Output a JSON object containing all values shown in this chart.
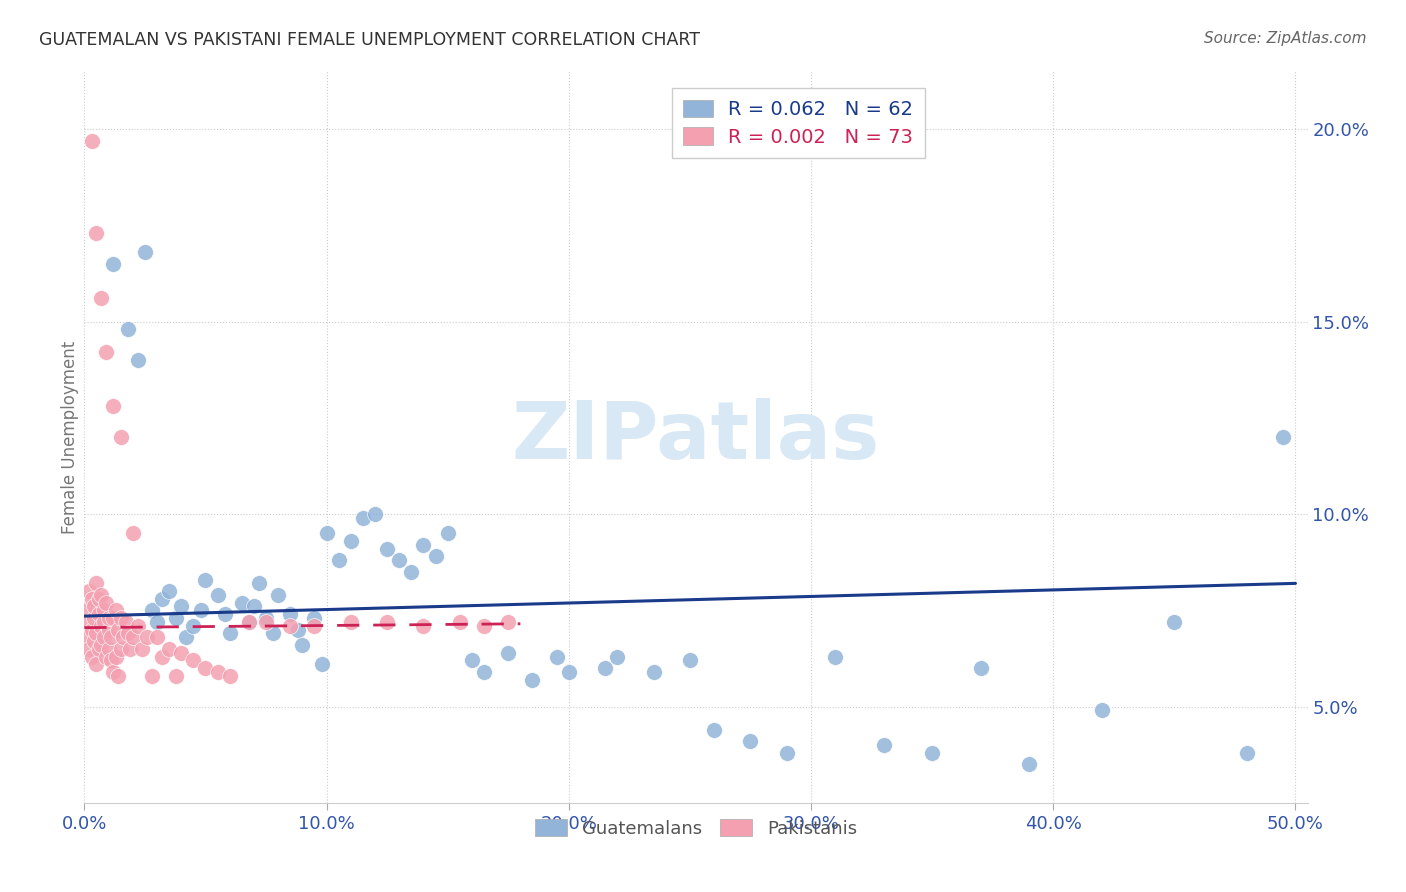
{
  "title": "GUATEMALAN VS PAKISTANI FEMALE UNEMPLOYMENT CORRELATION CHART",
  "source": "Source: ZipAtlas.com",
  "ylabel": "Female Unemployment",
  "legend_blue_R": "R = 0.062",
  "legend_blue_N": "N = 62",
  "legend_pink_R": "R = 0.002",
  "legend_pink_N": "N = 73",
  "blue_scatter_color": "#92B4D9",
  "pink_scatter_color": "#F4A0B0",
  "blue_line_color": "#1A3A8A",
  "pink_line_color": "#CC2255",
  "tick_label_color": "#3355AA",
  "watermark_color": "#D8E8F5",
  "ylabel_color": "#777777",
  "title_color": "#333333",
  "source_color": "#666666",
  "guat_x": [
    0.012,
    0.018,
    0.022,
    0.025,
    0.028,
    0.03,
    0.032,
    0.035,
    0.038,
    0.04,
    0.042,
    0.045,
    0.048,
    0.05,
    0.055,
    0.058,
    0.06,
    0.065,
    0.068,
    0.07,
    0.072,
    0.075,
    0.078,
    0.08,
    0.085,
    0.088,
    0.09,
    0.095,
    0.098,
    0.1,
    0.105,
    0.11,
    0.115,
    0.12,
    0.125,
    0.13,
    0.135,
    0.14,
    0.145,
    0.15,
    0.16,
    0.165,
    0.175,
    0.185,
    0.195,
    0.2,
    0.215,
    0.22,
    0.235,
    0.25,
    0.26,
    0.275,
    0.29,
    0.31,
    0.33,
    0.35,
    0.37,
    0.39,
    0.42,
    0.45,
    0.48,
    0.495
  ],
  "guat_y": [
    0.165,
    0.148,
    0.14,
    0.168,
    0.075,
    0.072,
    0.078,
    0.08,
    0.073,
    0.076,
    0.068,
    0.071,
    0.075,
    0.083,
    0.079,
    0.074,
    0.069,
    0.077,
    0.072,
    0.076,
    0.082,
    0.073,
    0.069,
    0.079,
    0.074,
    0.07,
    0.066,
    0.073,
    0.061,
    0.095,
    0.088,
    0.093,
    0.099,
    0.1,
    0.091,
    0.088,
    0.085,
    0.092,
    0.089,
    0.095,
    0.062,
    0.059,
    0.064,
    0.057,
    0.063,
    0.059,
    0.06,
    0.063,
    0.059,
    0.062,
    0.044,
    0.041,
    0.038,
    0.063,
    0.04,
    0.038,
    0.06,
    0.035,
    0.049,
    0.072,
    0.038,
    0.12
  ],
  "pak_x": [
    0.001,
    0.001,
    0.002,
    0.002,
    0.002,
    0.003,
    0.003,
    0.003,
    0.004,
    0.004,
    0.004,
    0.005,
    0.005,
    0.005,
    0.006,
    0.006,
    0.006,
    0.007,
    0.007,
    0.007,
    0.008,
    0.008,
    0.008,
    0.009,
    0.009,
    0.01,
    0.01,
    0.01,
    0.011,
    0.011,
    0.012,
    0.012,
    0.013,
    0.013,
    0.014,
    0.014,
    0.015,
    0.015,
    0.016,
    0.017,
    0.018,
    0.019,
    0.02,
    0.022,
    0.024,
    0.026,
    0.028,
    0.03,
    0.032,
    0.035,
    0.038,
    0.04,
    0.045,
    0.05,
    0.055,
    0.06,
    0.068,
    0.075,
    0.085,
    0.095,
    0.11,
    0.125,
    0.14,
    0.155,
    0.165,
    0.175,
    0.003,
    0.005,
    0.007,
    0.009,
    0.012,
    0.015,
    0.02
  ],
  "pak_y": [
    0.075,
    0.068,
    0.072,
    0.065,
    0.08,
    0.07,
    0.063,
    0.078,
    0.073,
    0.067,
    0.076,
    0.069,
    0.082,
    0.061,
    0.074,
    0.078,
    0.065,
    0.071,
    0.066,
    0.079,
    0.072,
    0.068,
    0.075,
    0.063,
    0.077,
    0.07,
    0.065,
    0.073,
    0.068,
    0.062,
    0.073,
    0.059,
    0.075,
    0.063,
    0.07,
    0.058,
    0.073,
    0.065,
    0.068,
    0.072,
    0.069,
    0.065,
    0.068,
    0.071,
    0.065,
    0.068,
    0.058,
    0.068,
    0.063,
    0.065,
    0.058,
    0.064,
    0.062,
    0.06,
    0.059,
    0.058,
    0.072,
    0.072,
    0.071,
    0.071,
    0.072,
    0.072,
    0.071,
    0.072,
    0.071,
    0.072,
    0.197,
    0.173,
    0.156,
    0.142,
    0.128,
    0.12,
    0.095
  ],
  "blue_line_x0": 0.0,
  "blue_line_x1": 0.5,
  "blue_line_y0": 0.0735,
  "blue_line_y1": 0.082,
  "pink_line_x0": 0.0,
  "pink_line_x1": 0.18,
  "pink_line_y0": 0.0705,
  "pink_line_y1": 0.0715,
  "xlim": [
    0.0,
    0.505
  ],
  "ylim": [
    0.025,
    0.215
  ],
  "yticks": [
    0.05,
    0.1,
    0.15,
    0.2
  ],
  "ytick_labels": [
    "5.0%",
    "10.0%",
    "15.0%",
    "20.0%"
  ],
  "xtick_vals": [
    0.0,
    0.1,
    0.2,
    0.3,
    0.4,
    0.5
  ],
  "xtick_labels": [
    "0.0%",
    "10.0%",
    "20.0%",
    "30.0%",
    "40.0%",
    "50.0%"
  ]
}
